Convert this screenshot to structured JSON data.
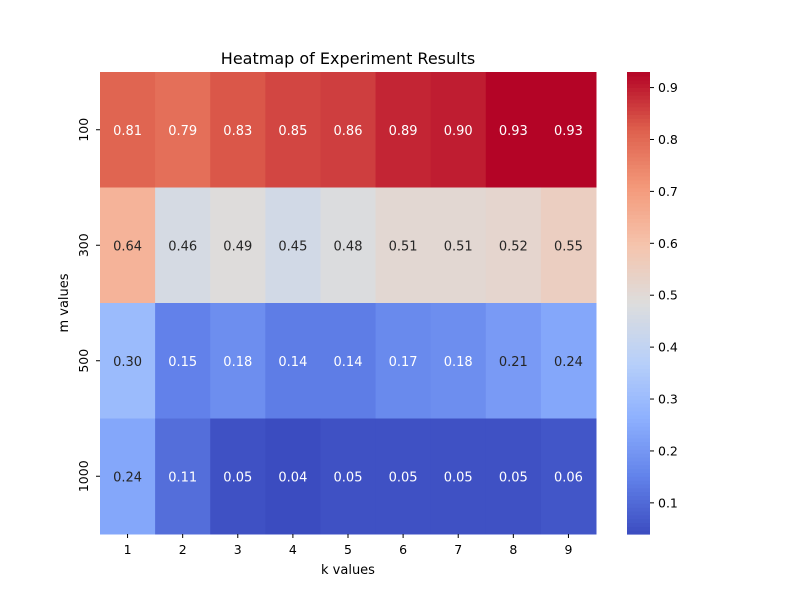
{
  "chart_data": {
    "type": "heatmap",
    "title": "Heatmap of Experiment Results",
    "xlabel": "k values",
    "ylabel": "m values",
    "x_categories": [
      "1",
      "2",
      "3",
      "4",
      "5",
      "6",
      "7",
      "8",
      "9"
    ],
    "y_categories": [
      "100",
      "300",
      "500",
      "1000"
    ],
    "values": [
      [
        0.81,
        0.79,
        0.83,
        0.85,
        0.86,
        0.89,
        0.9,
        0.93,
        0.93
      ],
      [
        0.64,
        0.46,
        0.49,
        0.45,
        0.48,
        0.51,
        0.51,
        0.52,
        0.55
      ],
      [
        0.3,
        0.15,
        0.18,
        0.14,
        0.14,
        0.17,
        0.18,
        0.21,
        0.24
      ],
      [
        0.24,
        0.11,
        0.05,
        0.04,
        0.05,
        0.05,
        0.05,
        0.05,
        0.06
      ]
    ],
    "colormap": "coolwarm",
    "vmin": 0.04,
    "vmax": 0.93,
    "colorbar_ticks": [
      "0.1",
      "0.2",
      "0.3",
      "0.4",
      "0.5",
      "0.6",
      "0.7",
      "0.8",
      "0.9"
    ],
    "annotations": true,
    "grid": false
  }
}
